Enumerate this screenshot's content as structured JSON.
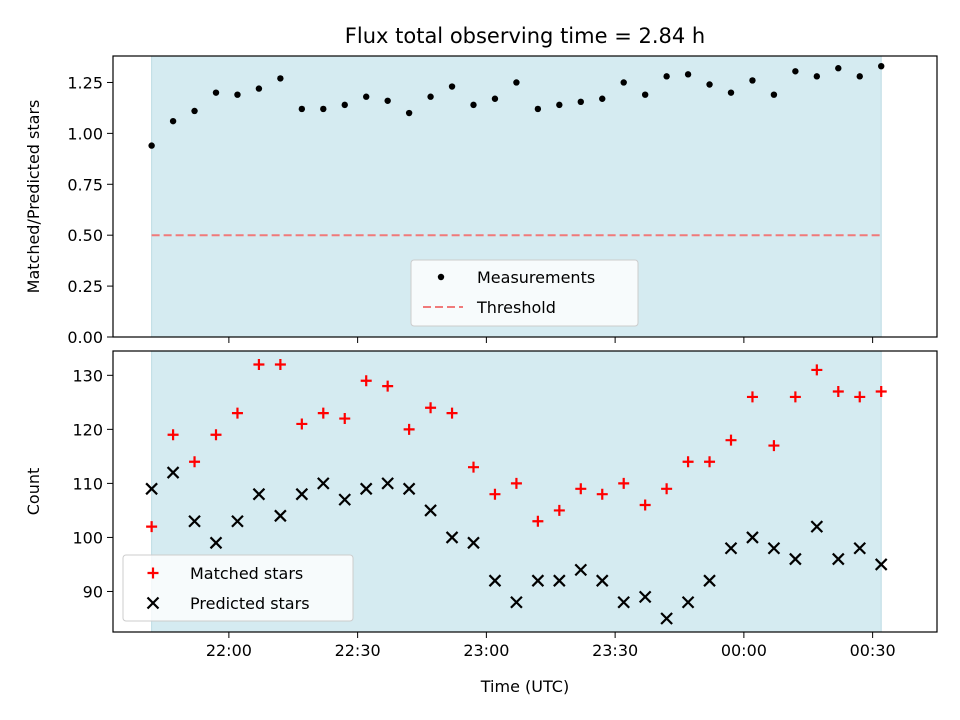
{
  "title": "Flux total observing time = 2.84 h",
  "colors": {
    "band": "#d5ebf1",
    "band_edge": "#bcdbe4",
    "measurement": "#000000",
    "threshold": "#f07a7a",
    "matched": "#ff0000",
    "predicted": "#000000"
  },
  "chart_data": [
    {
      "type": "scatter",
      "ylabel": "Matched/Predicted stars",
      "xlabel": "",
      "ylim": [
        0,
        1.38
      ],
      "yticks": [
        0.0,
        0.25,
        0.5,
        0.75,
        1.0,
        1.25
      ],
      "ytick_labels": [
        "0.00",
        "0.25",
        "0.50",
        "0.75",
        "1.00",
        "1.25"
      ],
      "xlim_minutes": [
        1293,
        1485
      ],
      "xticks_minutes": [
        1320,
        1350,
        1380,
        1410,
        1440,
        1470
      ],
      "observing_window_minutes": [
        1302,
        1472
      ],
      "legend": [
        {
          "label": "Measurements",
          "marker": "dot"
        },
        {
          "label": "Threshold",
          "marker": "dashed-line"
        }
      ],
      "legend_position": "bottom-center",
      "threshold": 0.5,
      "x_minutes": [
        1302,
        1307,
        1312,
        1317,
        1322,
        1327,
        1332,
        1337,
        1342,
        1347,
        1352,
        1357,
        1362,
        1367,
        1372,
        1377,
        1382,
        1387,
        1392,
        1397,
        1402,
        1407,
        1412,
        1417,
        1422,
        1427,
        1432,
        1437,
        1442,
        1447,
        1452,
        1457,
        1462,
        1467,
        1472
      ],
      "values": [
        0.94,
        1.06,
        1.11,
        1.2,
        1.19,
        1.22,
        1.27,
        1.12,
        1.12,
        1.14,
        1.18,
        1.16,
        1.1,
        1.18,
        1.23,
        1.14,
        1.17,
        1.25,
        1.12,
        1.14,
        1.155,
        1.17,
        1.25,
        1.19,
        1.28,
        1.29,
        1.24,
        1.2,
        1.26,
        1.19,
        1.305,
        1.28,
        1.32,
        1.28,
        1.33
      ]
    },
    {
      "type": "scatter",
      "ylabel": "Count",
      "xlabel": "Time (UTC)",
      "ylim": [
        82.5,
        134.5
      ],
      "yticks": [
        90,
        100,
        110,
        120,
        130
      ],
      "ytick_labels": [
        "90",
        "100",
        "110",
        "120",
        "130"
      ],
      "xlim_minutes": [
        1293,
        1485
      ],
      "xticks_minutes": [
        1320,
        1350,
        1380,
        1410,
        1440,
        1470
      ],
      "xtick_labels": [
        "22:00",
        "22:30",
        "23:00",
        "23:30",
        "00:00",
        "00:30"
      ],
      "observing_window_minutes": [
        1302,
        1472
      ],
      "legend_position": "bottom-left",
      "x_minutes": [
        1302,
        1307,
        1312,
        1317,
        1322,
        1327,
        1332,
        1337,
        1342,
        1347,
        1352,
        1357,
        1362,
        1367,
        1372,
        1377,
        1382,
        1387,
        1392,
        1397,
        1402,
        1407,
        1412,
        1417,
        1422,
        1427,
        1432,
        1437,
        1442,
        1447,
        1452,
        1457,
        1462,
        1467,
        1472
      ],
      "series": [
        {
          "name": "Matched stars",
          "marker": "plus",
          "values": [
            102,
            119,
            114,
            119,
            123,
            132,
            132,
            121,
            123,
            122,
            129,
            128,
            120,
            124,
            123,
            113,
            108,
            110,
            103,
            105,
            109,
            108,
            110,
            106,
            109,
            114,
            114,
            118,
            126,
            117,
            126,
            131,
            127,
            126,
            127
          ]
        },
        {
          "name": "Predicted stars",
          "marker": "x",
          "values": [
            109,
            112,
            103,
            99,
            103,
            108,
            104,
            108,
            110,
            107,
            109,
            110,
            109,
            105,
            100,
            99,
            92,
            88,
            92,
            92,
            94,
            92,
            88,
            89,
            85,
            88,
            92,
            98,
            100,
            98,
            96,
            102,
            96,
            98,
            95
          ]
        }
      ]
    }
  ]
}
